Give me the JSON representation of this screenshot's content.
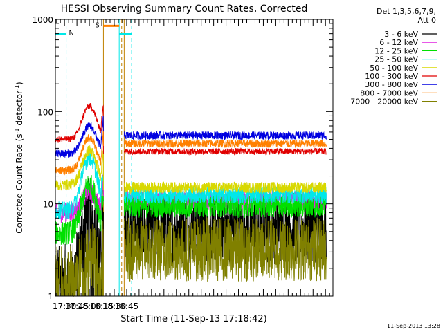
{
  "chart_data": {
    "type": "line",
    "title": "HESSI Observing Summary Count Rates, Corrected",
    "xlabel": "Start Time (11-Sep-13 17:18:42)",
    "ylabel_main": "Corrected Count Rate (s",
    "ylabel_sup1": "-1",
    "ylabel_mid": " detector",
    "ylabel_sup2": "-1",
    "ylabel_end": ")",
    "y_scale": "log",
    "xlim_min": [
      1039,
      1374
    ],
    "ylim": [
      1,
      1000
    ],
    "x_ticks": [
      {
        "min": 1050,
        "label": "17:30"
      },
      {
        "min": 1065,
        "label": "17:45"
      },
      {
        "min": 1080,
        "label": "18:00"
      },
      {
        "min": 1095,
        "label": "18:15"
      },
      {
        "min": 1110,
        "label": "18:30"
      },
      {
        "min": 1125,
        "label": "18:45"
      }
    ],
    "y_ticks": [
      {
        "value": 1,
        "label": "1"
      },
      {
        "value": 10,
        "label": "10"
      },
      {
        "value": 100,
        "label": "100"
      },
      {
        "value": 1000,
        "label": "1000"
      }
    ],
    "legend_header": [
      "Det 1,3,5,6,7,9,",
      "Att 0"
    ],
    "legend_placement": "right",
    "timestamp": "11-Sep-2013 13:28",
    "series": [
      {
        "name": "3 - 6 keV",
        "color": "#000000",
        "base": 1.5,
        "bump": 8.0,
        "noise": 0.9,
        "recover": 5.5
      },
      {
        "name": "6 - 12 keV",
        "color": "#e020e0",
        "base": 8.0,
        "bump": 13.5,
        "noise": 0.25,
        "recover": 11
      },
      {
        "name": "12 - 25 keV",
        "color": "#00e000",
        "base": 4.8,
        "bump": 16.0,
        "noise": 0.3,
        "recover": 9.5
      },
      {
        "name": "25 - 50 keV",
        "color": "#00e8e8",
        "base": 8.5,
        "bump": 32.0,
        "noise": 0.22,
        "recover": 12.5
      },
      {
        "name": "50 - 100 keV",
        "color": "#d8d800",
        "base": 16.0,
        "bump": 38.0,
        "noise": 0.14,
        "recover": 15
      },
      {
        "name": "100 - 300 keV",
        "color": "#e00000",
        "base": 50.0,
        "bump": 115.0,
        "noise": 0.08,
        "recover": 37
      },
      {
        "name": "300 - 800 keV",
        "color": "#0000e0",
        "base": 35.0,
        "bump": 70.0,
        "noise": 0.1,
        "recover": 55
      },
      {
        "name": "800 - 7000 keV",
        "color": "#ff8000",
        "base": 23.0,
        "bump": 52.0,
        "noise": 0.1,
        "recover": 45
      },
      {
        "name": "7000 - 20000 keV",
        "color": "#808000",
        "base": 1.6,
        "bump": 3.0,
        "noise": 0.8,
        "recover": 3.2
      }
    ],
    "markers": [
      {
        "type": "night",
        "label": "N",
        "start_min": 1039,
        "end_min": 1052,
        "level": 700
      },
      {
        "type": "saa",
        "label": "S",
        "start_min": 1097,
        "end_min": 1116,
        "level": 850
      },
      {
        "type": "night",
        "label": "",
        "start_min": 1116,
        "end_min": 1131,
        "level": 700
      }
    ],
    "gaps": [
      {
        "start_min": 1097,
        "end_min": 1122
      }
    ],
    "vlines": [
      {
        "min": 1052,
        "color": "#00e8e8",
        "style": "dashed"
      },
      {
        "min": 1097,
        "color": "#c08000",
        "style": "solid"
      },
      {
        "min": 1116,
        "color": "#00e8e8",
        "style": "solid"
      },
      {
        "min": 1119,
        "color": "#c08000",
        "style": "dashed"
      },
      {
        "min": 1122,
        "color": "#c08000",
        "style": "solid"
      },
      {
        "min": 1131,
        "color": "#00e8e8",
        "style": "dashed"
      }
    ]
  }
}
